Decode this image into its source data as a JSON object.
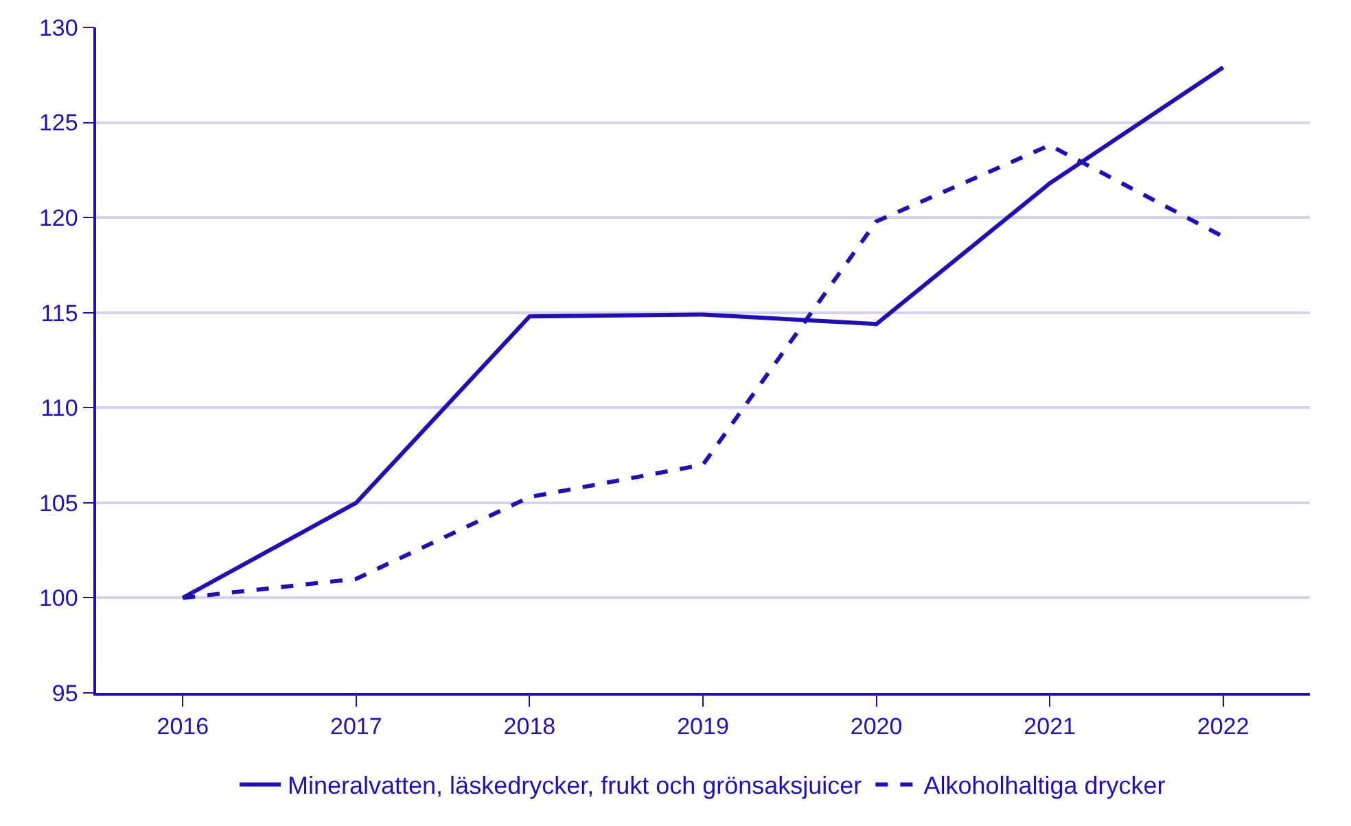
{
  "chart_data": {
    "type": "line",
    "categories": [
      "2016",
      "2017",
      "2018",
      "2019",
      "2020",
      "2021",
      "2022"
    ],
    "series": [
      {
        "name": "Mineralvatten, läskedrycker, frukt och grönsaksjuicer",
        "color": "#1f0fb4",
        "values": [
          100,
          105.0,
          114.8,
          114.9,
          114.4,
          121.8,
          127.9
        ],
        "line_style": "solid"
      },
      {
        "name": "Alkoholhaltiga drycker",
        "color": "#1f0fb4",
        "values": [
          100,
          101.0,
          105.3,
          107.0,
          119.8,
          123.8,
          119.0
        ],
        "line_style": "dashed"
      }
    ],
    "ylim": [
      95,
      130
    ],
    "yticks": [
      95,
      100,
      105,
      110,
      115,
      120,
      125,
      130
    ],
    "grid": "y",
    "legend": "bottom",
    "marker": "none"
  }
}
